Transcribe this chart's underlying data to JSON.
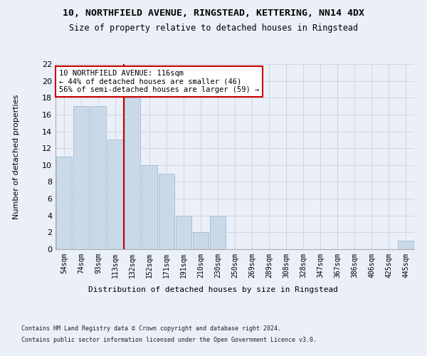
{
  "title1": "10, NORTHFIELD AVENUE, RINGSTEAD, KETTERING, NN14 4DX",
  "title2": "Size of property relative to detached houses in Ringstead",
  "xlabel": "Distribution of detached houses by size in Ringstead",
  "ylabel": "Number of detached properties",
  "categories": [
    "54sqm",
    "74sqm",
    "93sqm",
    "113sqm",
    "132sqm",
    "152sqm",
    "171sqm",
    "191sqm",
    "210sqm",
    "230sqm",
    "250sqm",
    "269sqm",
    "289sqm",
    "308sqm",
    "328sqm",
    "347sqm",
    "367sqm",
    "386sqm",
    "406sqm",
    "425sqm",
    "445sqm"
  ],
  "values": [
    11,
    17,
    17,
    13,
    18,
    10,
    9,
    4,
    2,
    4,
    0,
    0,
    0,
    0,
    0,
    0,
    0,
    0,
    0,
    0,
    1
  ],
  "bar_color": "#c9d9e8",
  "bar_edgecolor": "#9ab5cc",
  "vline_x": 3.5,
  "vline_color": "#cc0000",
  "annotation_text": "10 NORTHFIELD AVENUE: 116sqm\n← 44% of detached houses are smaller (46)\n56% of semi-detached houses are larger (59) →",
  "annotation_box_color": "#ffffff",
  "annotation_box_edgecolor": "#cc0000",
  "ylim": [
    0,
    22
  ],
  "yticks": [
    0,
    2,
    4,
    6,
    8,
    10,
    12,
    14,
    16,
    18,
    20,
    22
  ],
  "footnote1": "Contains HM Land Registry data © Crown copyright and database right 2024.",
  "footnote2": "Contains public sector information licensed under the Open Government Licence v3.0.",
  "bg_color": "#eaeff8",
  "plot_bg_color": "#eaeff8",
  "grid_color": "#c5cdd8"
}
